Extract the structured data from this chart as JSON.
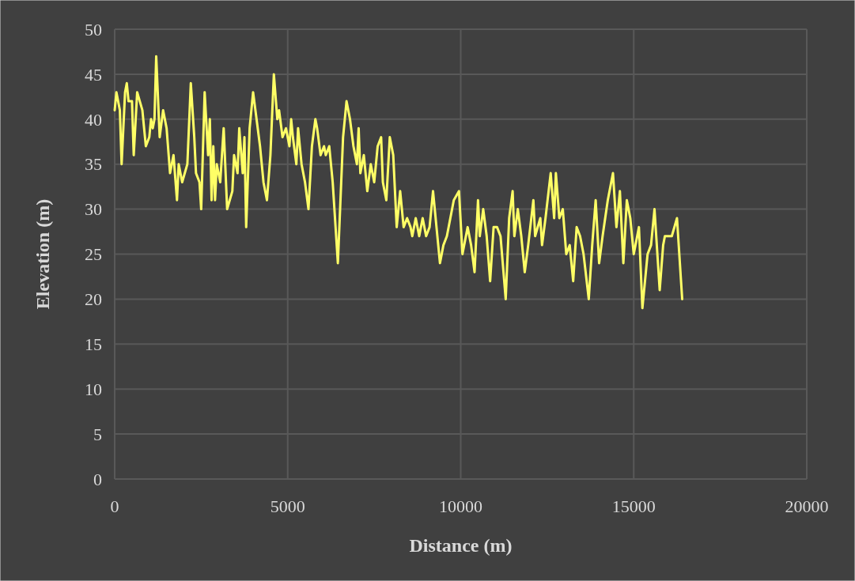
{
  "chart_data": {
    "type": "line",
    "xlabel": "Distance (m)",
    "ylabel": "Elevation (m)",
    "xlim": [
      0,
      20000
    ],
    "xticks": [
      0,
      5000,
      10000,
      15000,
      20000
    ],
    "ylim": [
      0,
      50
    ],
    "yticks": [
      0,
      5,
      10,
      15,
      20,
      25,
      30,
      35,
      40,
      45,
      50
    ],
    "grid": true,
    "marker": "none",
    "line_style": "solid",
    "series": [
      {
        "color": "#ffff66",
        "x": [
          0,
          50,
          150,
          200,
          300,
          350,
          400,
          500,
          550,
          650,
          800,
          900,
          1000,
          1050,
          1100,
          1150,
          1200,
          1300,
          1400,
          1500,
          1600,
          1700,
          1800,
          1850,
          1950,
          2100,
          2200,
          2300,
          2350,
          2450,
          2500,
          2600,
          2700,
          2750,
          2800,
          2850,
          2900,
          2950,
          3050,
          3150,
          3250,
          3400,
          3450,
          3550,
          3600,
          3700,
          3750,
          3800,
          3900,
          4000,
          4100,
          4200,
          4300,
          4400,
          4500,
          4600,
          4700,
          4750,
          4850,
          4950,
          5050,
          5100,
          5150,
          5250,
          5300,
          5400,
          5500,
          5600,
          5700,
          5800,
          5850,
          5950,
          6050,
          6100,
          6200,
          6300,
          6450,
          6600,
          6700,
          6800,
          6900,
          7000,
          7050,
          7100,
          7200,
          7300,
          7400,
          7500,
          7600,
          7700,
          7750,
          7850,
          7950,
          8050,
          8150,
          8250,
          8350,
          8450,
          8550,
          8600,
          8700,
          8800,
          8900,
          9000,
          9100,
          9200,
          9300,
          9400,
          9500,
          9600,
          9700,
          9800,
          9950,
          10050,
          10200,
          10300,
          10400,
          10500,
          10550,
          10650,
          10750,
          10850,
          10950,
          11050,
          11150,
          11300,
          11400,
          11500,
          11550,
          11650,
          11750,
          11850,
          11950,
          12100,
          12150,
          12300,
          12350,
          12450,
          12600,
          12700,
          12750,
          12850,
          12950,
          13050,
          13150,
          13250,
          13350,
          13450,
          13550,
          13700,
          13800,
          13900,
          14000,
          14100,
          14250,
          14300,
          14400,
          14500,
          14600,
          14700,
          14800,
          14900,
          15000,
          15150,
          15250,
          15400,
          15500,
          15600,
          15750,
          15850,
          15900,
          16000,
          16100,
          16250,
          16400
        ],
        "values": [
          41,
          43,
          41,
          35,
          43,
          44,
          42,
          42,
          36,
          43,
          41,
          37,
          38,
          40,
          39,
          40,
          47,
          38,
          41,
          39,
          34,
          36,
          31,
          35,
          33,
          35,
          44,
          38,
          34,
          33,
          30,
          43,
          36,
          40,
          31,
          37,
          31,
          35,
          33,
          39,
          30,
          32,
          36,
          34,
          39,
          34,
          38,
          28,
          39,
          43,
          40,
          37,
          33,
          31,
          36,
          45,
          40,
          41,
          38,
          39,
          37,
          40,
          38,
          35,
          39,
          35,
          33,
          30,
          37,
          40,
          39,
          36,
          37,
          36,
          37,
          33,
          24,
          38,
          42,
          40,
          37,
          35,
          39,
          34,
          36,
          32,
          35,
          33,
          37,
          38,
          33,
          31,
          38,
          36,
          28,
          32,
          28,
          29,
          28,
          27,
          29,
          27,
          29,
          27,
          28,
          32,
          28,
          24,
          26,
          27,
          29,
          31,
          32,
          25,
          28,
          26,
          23,
          31,
          27,
          30,
          27,
          22,
          28,
          28,
          27,
          20,
          29,
          32,
          27,
          30,
          27,
          23,
          26,
          31,
          27,
          29,
          26,
          29,
          34,
          29,
          34,
          29,
          30,
          25,
          26,
          22,
          28,
          27,
          25,
          20,
          26,
          31,
          24,
          27,
          31,
          32,
          34,
          28,
          32,
          24,
          31,
          29,
          25,
          28,
          19,
          25,
          26,
          30,
          21,
          26,
          27,
          27,
          27,
          29,
          20
        ]
      }
    ]
  }
}
